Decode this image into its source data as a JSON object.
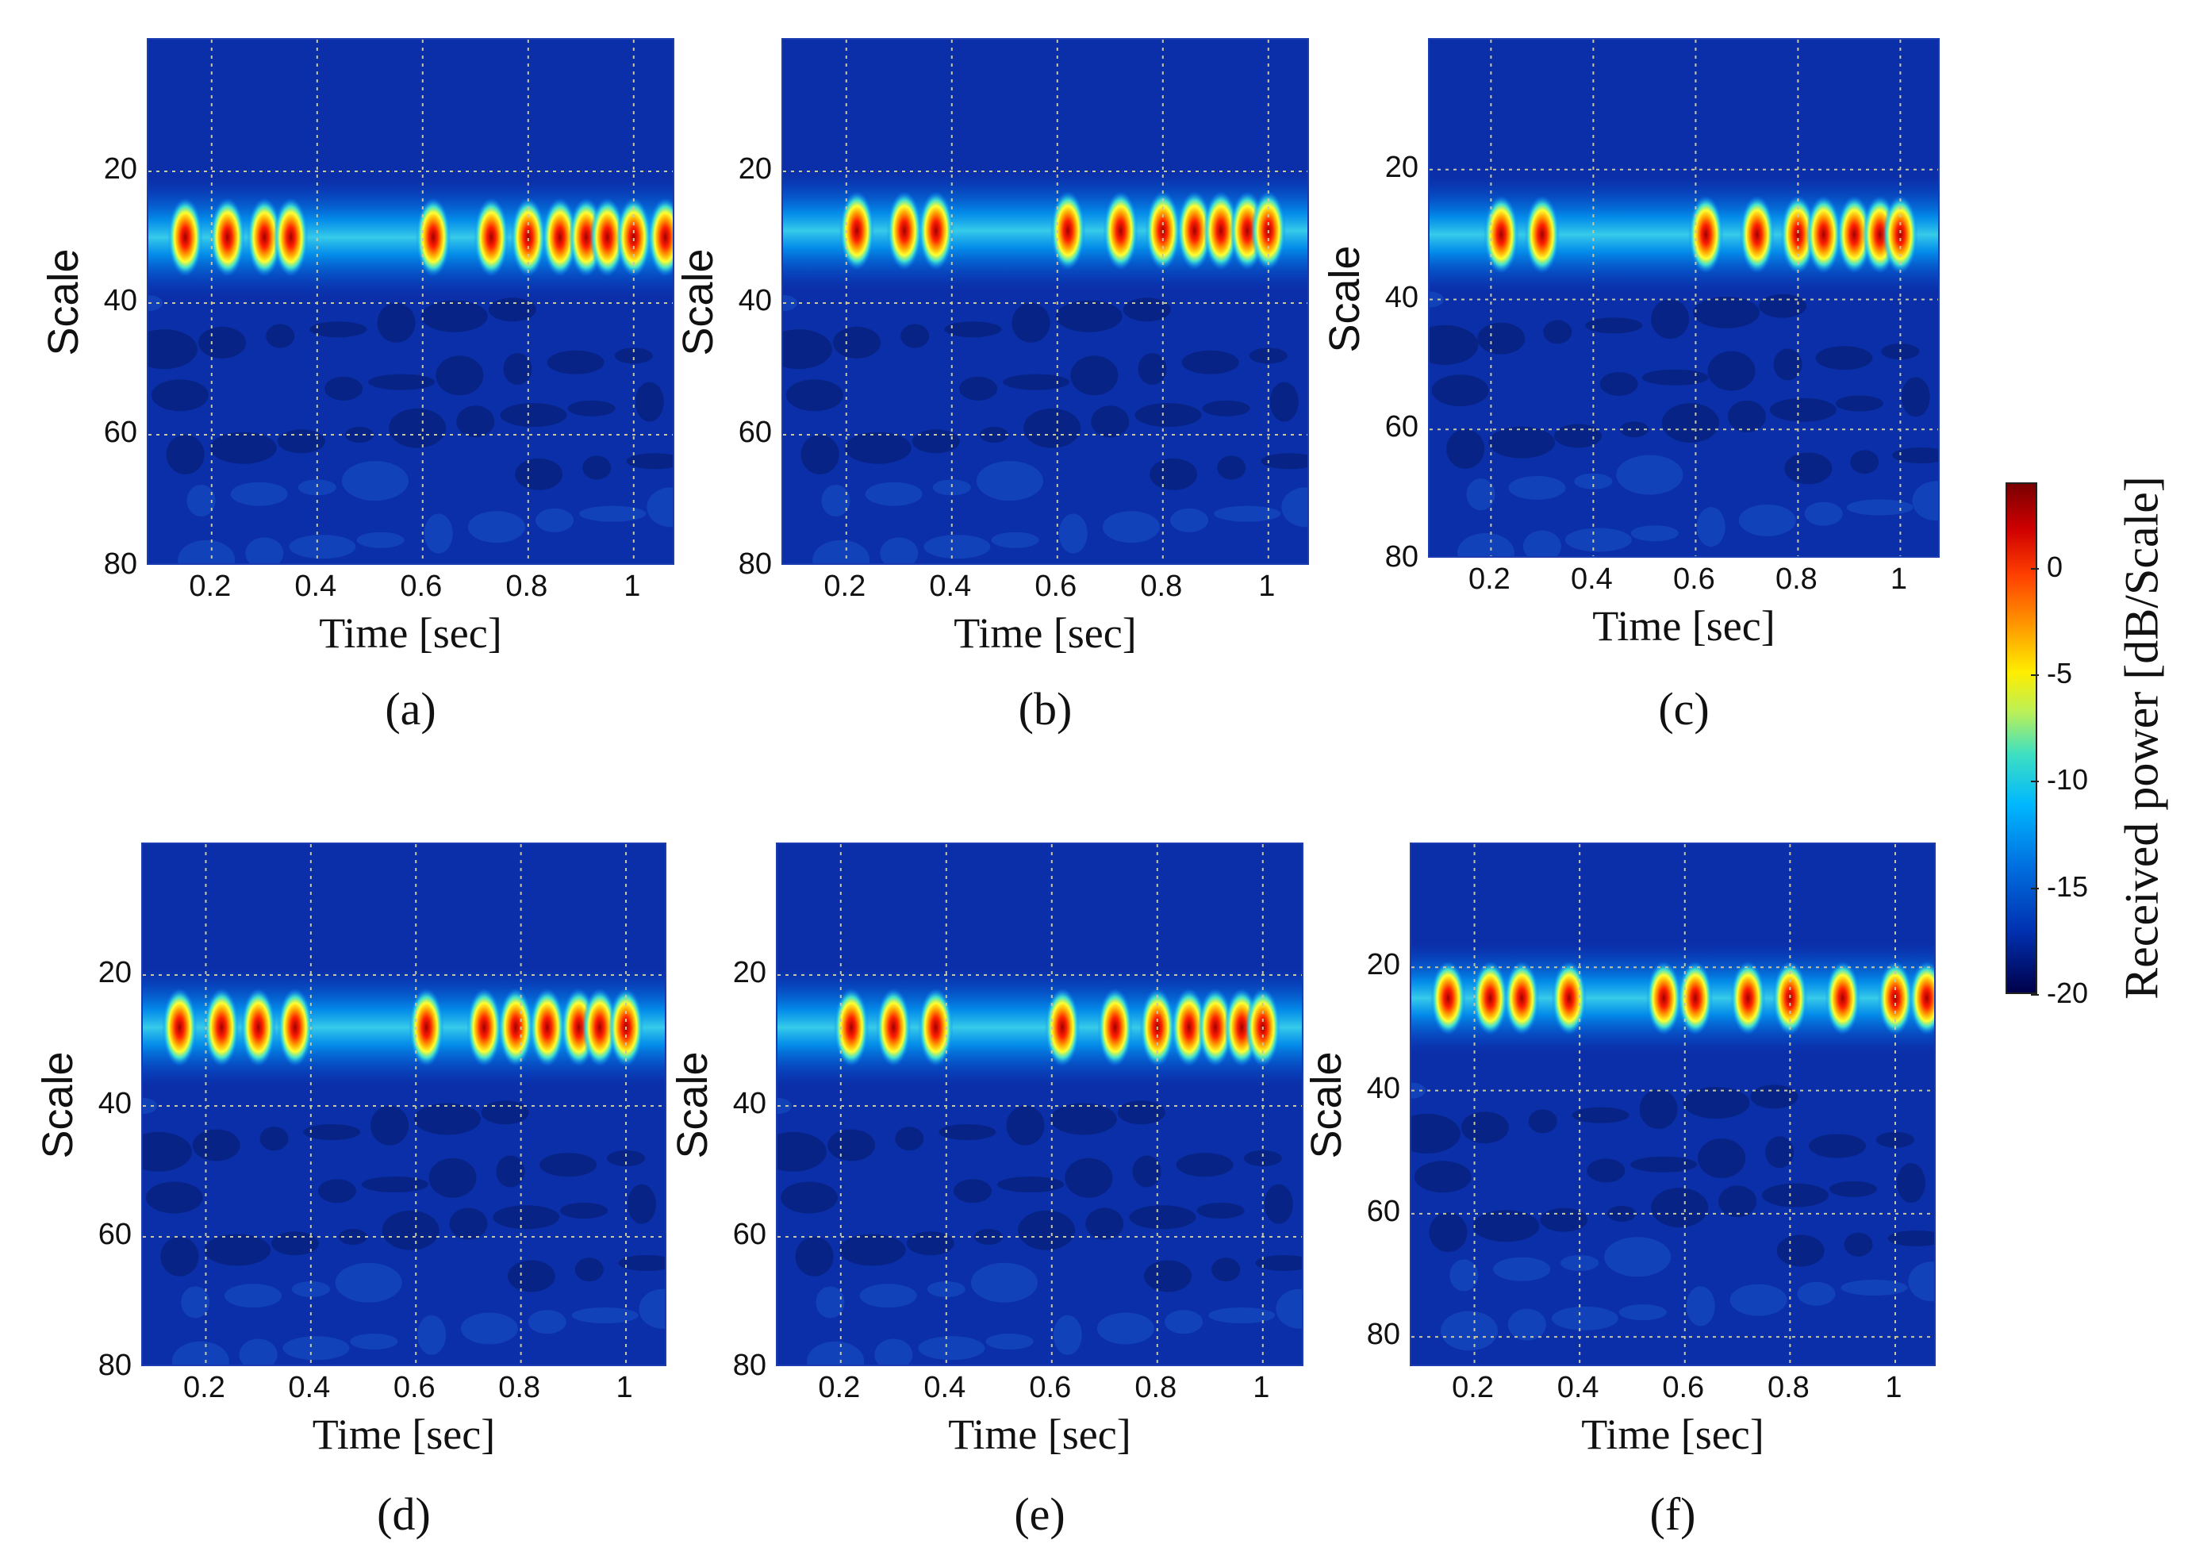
{
  "chart_data": [
    {
      "type": "heatmap",
      "panel": "(a)",
      "xlabel": "Time [sec]",
      "ylabel": "Scale",
      "xticks": [
        "0.2",
        "0.4",
        "0.6",
        "0.8",
        "1"
      ],
      "yticks": [
        "20",
        "40",
        "60",
        "80"
      ],
      "xlim": [
        0.08,
        1.08
      ],
      "ylim": [
        80,
        0
      ],
      "band_center_scale": 30,
      "hotspots_time": [
        0.15,
        0.23,
        0.3,
        0.35,
        0.62,
        0.73,
        0.8,
        0.86,
        0.91,
        0.95,
        1.0,
        1.06
      ]
    },
    {
      "type": "heatmap",
      "panel": "(b)",
      "xlabel": "Time [sec]",
      "ylabel": "Scale",
      "xticks": [
        "0.2",
        "0.4",
        "0.6",
        "0.8",
        "1"
      ],
      "yticks": [
        "20",
        "40",
        "60",
        "80"
      ],
      "xlim": [
        0.08,
        1.08
      ],
      "ylim": [
        80,
        0
      ],
      "band_center_scale": 29,
      "hotspots_time": [
        0.22,
        0.31,
        0.37,
        0.62,
        0.72,
        0.8,
        0.86,
        0.91,
        0.96,
        1.0
      ]
    },
    {
      "type": "heatmap",
      "panel": "(c)",
      "xlabel": "Time [sec]",
      "ylabel": "Scale",
      "xticks": [
        "0.2",
        "0.4",
        "0.6",
        "0.8",
        "1"
      ],
      "yticks": [
        "20",
        "40",
        "60",
        "80"
      ],
      "xlim": [
        0.08,
        1.08
      ],
      "ylim": [
        80,
        0
      ],
      "band_center_scale": 30,
      "hotspots_time": [
        0.22,
        0.3,
        0.62,
        0.72,
        0.8,
        0.85,
        0.91,
        0.96,
        1.0
      ]
    },
    {
      "type": "heatmap",
      "panel": "(d)",
      "xlabel": "Time [sec]",
      "ylabel": "Scale",
      "xticks": [
        "0.2",
        "0.4",
        "0.6",
        "0.8",
        "1"
      ],
      "yticks": [
        "20",
        "40",
        "60",
        "80"
      ],
      "xlim": [
        0.08,
        1.08
      ],
      "ylim": [
        80,
        0
      ],
      "band_center_scale": 28,
      "hotspots_time": [
        0.15,
        0.23,
        0.3,
        0.37,
        0.62,
        0.73,
        0.79,
        0.85,
        0.91,
        0.95,
        1.0
      ]
    },
    {
      "type": "heatmap",
      "panel": "(e)",
      "xlabel": "Time [sec]",
      "ylabel": "Scale",
      "xticks": [
        "0.2",
        "0.4",
        "0.6",
        "0.8",
        "1"
      ],
      "yticks": [
        "20",
        "40",
        "60",
        "80"
      ],
      "xlim": [
        0.08,
        1.08
      ],
      "ylim": [
        80,
        0
      ],
      "band_center_scale": 28,
      "hotspots_time": [
        0.22,
        0.3,
        0.38,
        0.62,
        0.72,
        0.8,
        0.86,
        0.91,
        0.96,
        1.0
      ]
    },
    {
      "type": "heatmap",
      "panel": "(f)",
      "xlabel": "Time [sec]",
      "ylabel": "Scale",
      "xticks": [
        "0.2",
        "0.4",
        "0.6",
        "0.8",
        "1"
      ],
      "yticks": [
        "20",
        "40",
        "60",
        "80"
      ],
      "xlim": [
        0.08,
        1.08
      ],
      "ylim": [
        85,
        0
      ],
      "band_center_scale": 25,
      "hotspots_time": [
        0.15,
        0.23,
        0.29,
        0.38,
        0.56,
        0.62,
        0.72,
        0.8,
        0.9,
        1.0,
        1.06
      ]
    }
  ],
  "colorbar": {
    "label": "Received power [dB/Scale]",
    "ticks": [
      "0",
      "-5",
      "-10",
      "-15",
      "-20"
    ],
    "range": [
      -20,
      4
    ]
  },
  "colors": {
    "low": "#00145a",
    "mid": "#00b8ff",
    "high": "#d00000",
    "grid": "#c8c8a0"
  }
}
